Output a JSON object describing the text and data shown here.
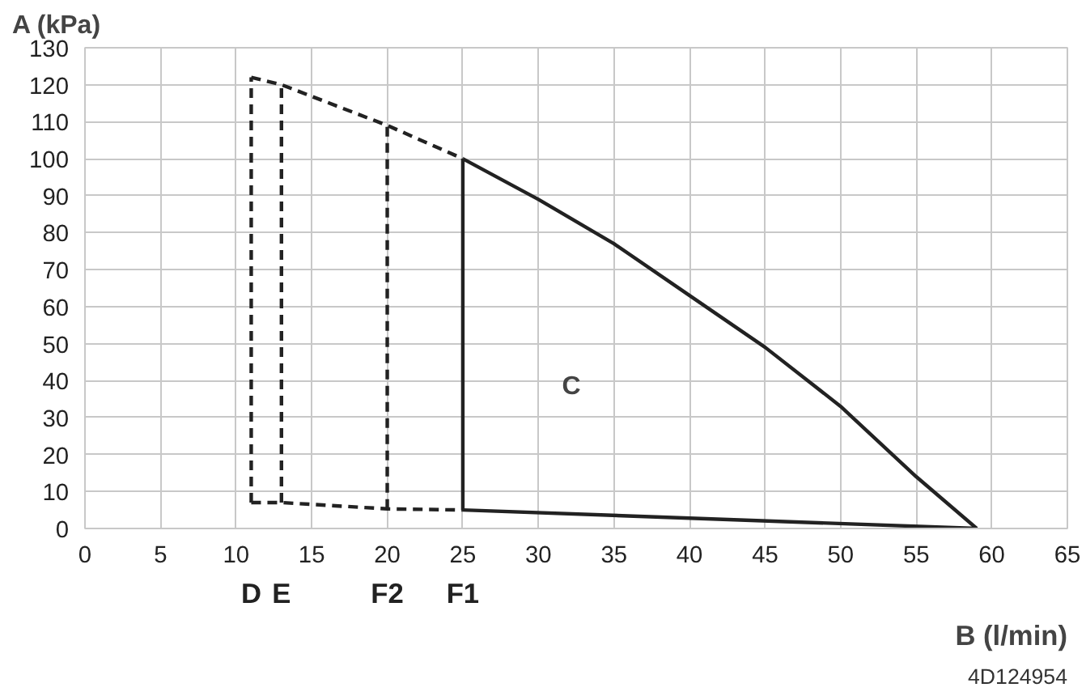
{
  "chart_data": {
    "type": "line",
    "xlabel": "B (l/min)",
    "ylabel": "A (kPa)",
    "series": [
      {
        "color": "#222222",
        "line_style": "solid",
        "x": [
          25,
          30,
          35,
          40,
          45,
          50,
          55,
          59
        ],
        "values": [
          100,
          89,
          77,
          63,
          49,
          33,
          14,
          0
        ]
      },
      {
        "color": "#222222",
        "line_style": "solid",
        "x": [
          25,
          59
        ],
        "values": [
          5,
          0
        ]
      },
      {
        "name": "F1",
        "color": "#222222",
        "line_style": "solid",
        "x": [
          25,
          25
        ],
        "values": [
          5,
          100
        ]
      },
      {
        "color": "#222222",
        "line_style": "dashed",
        "x": [
          11,
          13,
          20,
          25
        ],
        "values": [
          122,
          120,
          109,
          100
        ]
      },
      {
        "color": "#222222",
        "line_style": "dashed",
        "x": [
          11,
          13,
          20,
          25
        ],
        "values": [
          7,
          7,
          5.3,
          5
        ]
      },
      {
        "name": "D",
        "color": "#222222",
        "line_style": "dashed",
        "x": [
          11,
          11
        ],
        "values": [
          7,
          122
        ]
      },
      {
        "name": "E",
        "color": "#222222",
        "line_style": "dashed",
        "x": [
          13,
          13
        ],
        "values": [
          7,
          120
        ]
      },
      {
        "name": "F2",
        "color": "#222222",
        "line_style": "dashed",
        "x": [
          20,
          20
        ],
        "values": [
          5.3,
          109
        ]
      }
    ],
    "xlim": [
      0,
      65
    ],
    "xticks": [
      0,
      5,
      10,
      15,
      20,
      25,
      30,
      35,
      40,
      45,
      50,
      55,
      60,
      65
    ],
    "ylim": [
      0,
      130
    ],
    "yticks": [
      0,
      10,
      20,
      30,
      40,
      50,
      60,
      70,
      80,
      90,
      100,
      110,
      120,
      130
    ],
    "grid": true,
    "marker": "none",
    "annotations": [
      "C",
      "4D124954"
    ]
  }
}
